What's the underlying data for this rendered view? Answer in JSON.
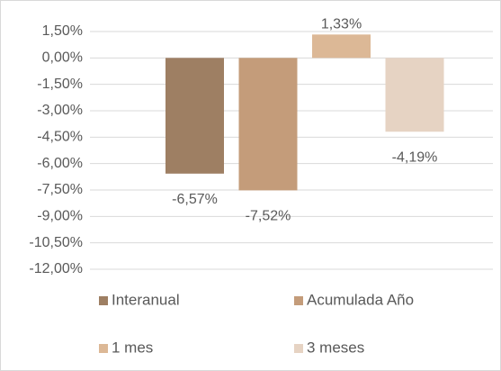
{
  "chart_data": {
    "type": "bar",
    "categories": [
      null
    ],
    "series": [
      {
        "name": "Interanual",
        "color": "#9e7f63",
        "values": [
          -6.57
        ],
        "value_labels": [
          "-6,57%"
        ]
      },
      {
        "name": "Acumulada Año",
        "color": "#c49c7a",
        "values": [
          -7.52
        ],
        "value_labels": [
          "-7,52%"
        ]
      },
      {
        "name": "1 mes",
        "color": "#dcb896",
        "values": [
          1.33
        ],
        "value_labels": [
          "1,33%"
        ]
      },
      {
        "name": "3 meses",
        "color": "#e6d3c3",
        "values": [
          -4.19
        ],
        "value_labels": [
          "-4,19%"
        ]
      }
    ],
    "ylim": [
      -12,
      1.5
    ],
    "yticks": [
      {
        "value": 1.5,
        "label": "1,50%"
      },
      {
        "value": 0,
        "label": "0,00%"
      },
      {
        "value": -1.5,
        "label": "-1,50%"
      },
      {
        "value": -3,
        "label": "-3,00%"
      },
      {
        "value": -4.5,
        "label": "-4,50%"
      },
      {
        "value": -6,
        "label": "-6,00%"
      },
      {
        "value": -7.5,
        "label": "-7,50%"
      },
      {
        "value": -9,
        "label": "-9,00%"
      },
      {
        "value": -10.5,
        "label": "-10,50%"
      },
      {
        "value": -12,
        "label": "-12,00%"
      }
    ],
    "grid": true,
    "legend": "bottom"
  }
}
